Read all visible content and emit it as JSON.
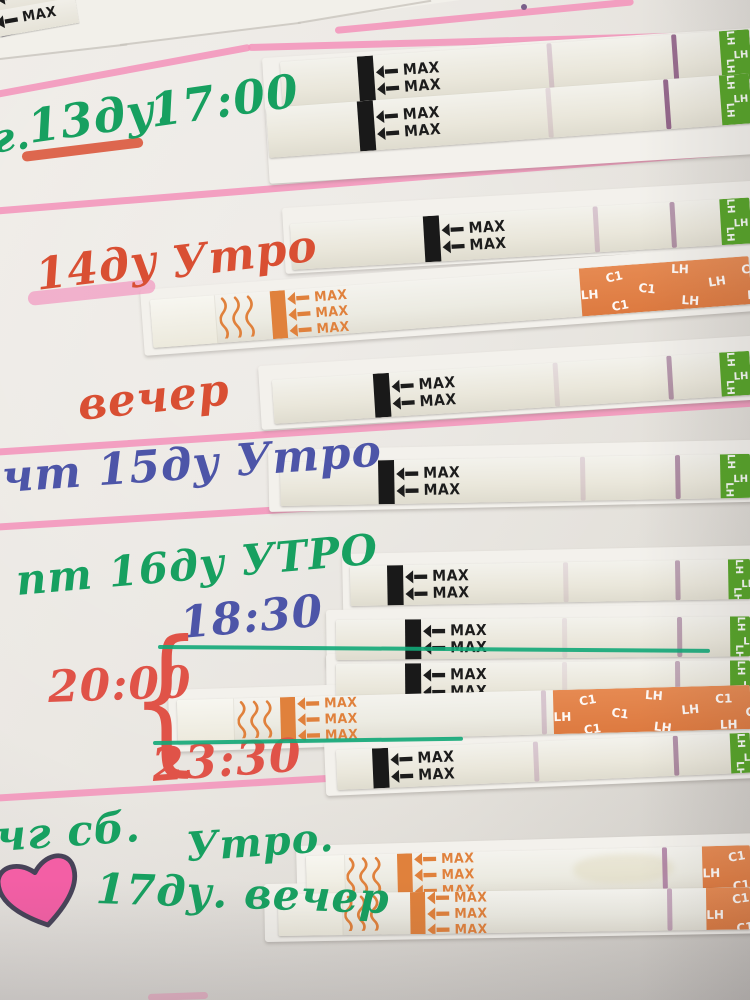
{
  "labels": {
    "max": "MAX",
    "lh": "LH",
    "c1": "C1"
  },
  "handwriting": {
    "row13": {
      "prefix": "г.",
      "day": "13ду.",
      "time": "17:00"
    },
    "row14": {
      "day": "14ду",
      "morning": "Утро",
      "evening": "вечер"
    },
    "row15": {
      "weekday": "чт",
      "day": "15ду",
      "morning": "Утро"
    },
    "row16": {
      "weekday": "пт",
      "day": "16ду",
      "morning": "УТРО",
      "t1830": "18:30",
      "t2000": "20:00",
      "t2330": "23:30",
      "brace": "{"
    },
    "row17": {
      "weekday": "чг сб.",
      "day": "17ду.",
      "morning": "Утро.",
      "evening": "вечер"
    }
  },
  "colors": {
    "ink_green": "#17a060",
    "ink_red": "#d94f33",
    "ink_blue": "#4d55a8",
    "ink_bright_red": "#e05348",
    "highlight_pink": "#f27fb5",
    "ruled_line_pink": "#f392ba",
    "strip_orange": "#e0813c",
    "cap_green": "#56a427",
    "cap_orange": "#e68a52",
    "marker_green": "#12a878",
    "heart_pink": "#f35fa5"
  }
}
